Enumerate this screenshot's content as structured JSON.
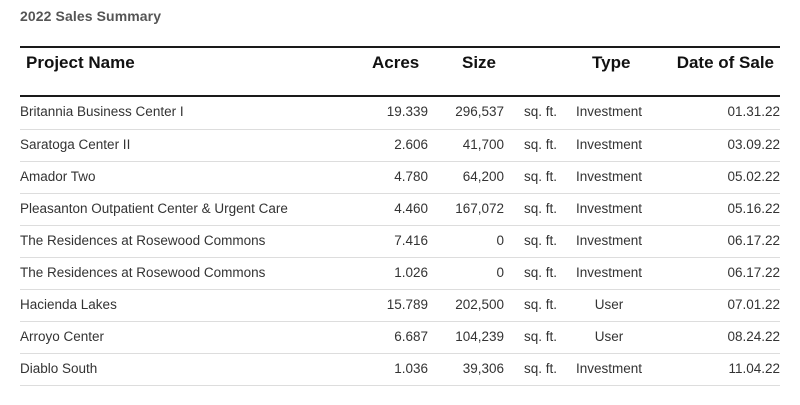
{
  "title": "2022 Sales Summary",
  "columns": {
    "name": "Project Name",
    "acres": "Acres",
    "size": "Size",
    "type": "Type",
    "date": "Date of Sale"
  },
  "unit": "sq. ft.",
  "rows": [
    {
      "name": "Britannia Business Center I",
      "acres": "19.339",
      "size": "296,537",
      "unit": "sq. ft.",
      "type": "Investment",
      "date": "01.31.22"
    },
    {
      "name": "Saratoga Center II",
      "acres": "2.606",
      "size": "41,700",
      "unit": "sq. ft.",
      "type": "Investment",
      "date": "03.09.22"
    },
    {
      "name": "Amador Two",
      "acres": "4.780",
      "size": "64,200",
      "unit": "sq. ft.",
      "type": "Investment",
      "date": "05.02.22"
    },
    {
      "name": "Pleasanton Outpatient Center & Urgent Care",
      "acres": "4.460",
      "size": "167,072",
      "unit": "sq. ft.",
      "type": "Investment",
      "date": "05.16.22"
    },
    {
      "name": "The Residences at Rosewood Commons",
      "acres": "7.416",
      "size": "0",
      "unit": "sq. ft.",
      "type": "Investment",
      "date": "06.17.22"
    },
    {
      "name": "The Residences at Rosewood Commons",
      "acres": "1.026",
      "size": "0",
      "unit": "sq. ft.",
      "type": "Investment",
      "date": "06.17.22"
    },
    {
      "name": "Hacienda Lakes",
      "acres": "15.789",
      "size": "202,500",
      "unit": "sq. ft.",
      "type": "User",
      "date": "07.01.22"
    },
    {
      "name": "Arroyo Center",
      "acres": "6.687",
      "size": "104,239",
      "unit": "sq. ft.",
      "type": "User",
      "date": "08.24.22"
    },
    {
      "name": "Diablo South",
      "acres": "1.036",
      "size": "39,306",
      "unit": "sq. ft.",
      "type": "Investment",
      "date": "11.04.22"
    }
  ]
}
